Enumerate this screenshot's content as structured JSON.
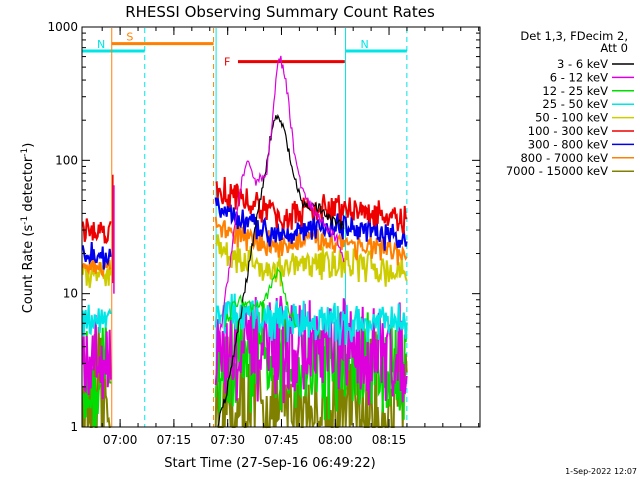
{
  "chart_data": {
    "type": "line",
    "title": "RHESSI Observing Summary Count Rates",
    "xlabel": "Start Time (27-Sep-16 06:49:22)",
    "ylabel": "Count Rate (s-1 detector-1)",
    "ylabel_parts": {
      "pre": "Count Rate (s",
      "sup1": "-1",
      "mid": " detector",
      "sup2": "-1",
      "post": ")"
    },
    "yscale": "log",
    "ylim": [
      1,
      1000
    ],
    "xlim_min": [
      0,
      111
    ],
    "yticks": [
      {
        "value": 1,
        "label": "1"
      },
      {
        "value": 10,
        "label": "10"
      },
      {
        "value": 100,
        "label": "100"
      },
      {
        "value": 1000,
        "label": "1000"
      }
    ],
    "xticks": [
      {
        "value": 10.63,
        "label": "07:00"
      },
      {
        "value": 25.63,
        "label": "07:15"
      },
      {
        "value": 40.63,
        "label": "07:30"
      },
      {
        "value": 55.63,
        "label": "07:45"
      },
      {
        "value": 70.63,
        "label": "08:00"
      },
      {
        "value": 85.63,
        "label": "08:15"
      }
    ],
    "legend_header": [
      "Det 1,3, FDecim 2,",
      "Att 0"
    ],
    "legend_placement": "right",
    "series": [
      {
        "name": "3 - 6 keV",
        "color": "#000000"
      },
      {
        "name": "6 - 12 keV",
        "color": "#dd00dd"
      },
      {
        "name": "12 - 25 keV",
        "color": "#00dd00"
      },
      {
        "name": "25 - 50 keV",
        "color": "#00e5e5"
      },
      {
        "name": "50 - 100 keV",
        "color": "#cccc00"
      },
      {
        "name": "100 - 300 keV",
        "color": "#ee0000"
      },
      {
        "name": "300 - 800 keV",
        "color": "#0000ee"
      },
      {
        "name": "800 - 7000 keV",
        "color": "#ff7f00"
      },
      {
        "name": "7000 - 15000 keV",
        "color": "#808000"
      }
    ],
    "bars": [
      {
        "label": "S",
        "color": "#ff7f00",
        "x0": 8.2,
        "x1": 36.7,
        "value": 750
      },
      {
        "label": "N",
        "color": "#00e5e5",
        "x0": 0,
        "x1": 17.5,
        "value": 660
      },
      {
        "label": "N",
        "color": "#00e5e5",
        "x0": 73.5,
        "x1": 90.6,
        "value": 660
      },
      {
        "label": "F",
        "color": "#ee0000",
        "x0": 43.5,
        "x1": 73.3,
        "value": 550
      }
    ],
    "vlines": [
      {
        "x": 8.3,
        "color": "#ff7f00",
        "dashed": false
      },
      {
        "x": 17.5,
        "color": "#00e5e5",
        "dashed": true
      },
      {
        "x": 36.7,
        "color": "#ff7f00",
        "dashed": true
      },
      {
        "x": 37.4,
        "color": "#00e5e5",
        "dashed": false
      },
      {
        "x": 73.5,
        "color": "#00e5e5",
        "dashed": false
      },
      {
        "x": 90.6,
        "color": "#00e5e5",
        "dashed": true
      }
    ],
    "curves": [
      {
        "series": 0,
        "points": [
          [
            37.9,
            1.0
          ],
          [
            39.5,
            1.5
          ],
          [
            41.0,
            2.2
          ],
          [
            41.9,
            3.0
          ],
          [
            43.4,
            5.0
          ],
          [
            45.7,
            12
          ],
          [
            47.5,
            24
          ],
          [
            49.4,
            45
          ],
          [
            51.0,
            80
          ],
          [
            52.6,
            150
          ],
          [
            54.1,
            210
          ],
          [
            55.5,
            195
          ],
          [
            56.8,
            150
          ],
          [
            58.3,
            95
          ],
          [
            60.0,
            60
          ],
          [
            61.4,
            48
          ],
          [
            63.0,
            45
          ],
          [
            64.4,
            46
          ],
          [
            66.0,
            44
          ],
          [
            67.5,
            40
          ],
          [
            69.0,
            36
          ],
          [
            70.6,
            34
          ],
          [
            72.0,
            33
          ],
          [
            73.3,
            31
          ]
        ]
      },
      {
        "series": 1,
        "points": [
          [
            37.9,
            4.5
          ],
          [
            39.0,
            6
          ],
          [
            40.5,
            12
          ],
          [
            42.0,
            25
          ],
          [
            43.5,
            45
          ],
          [
            44.5,
            70
          ],
          [
            46.0,
            92
          ],
          [
            47.2,
            85
          ],
          [
            48.5,
            70
          ],
          [
            49.5,
            75
          ],
          [
            50.6,
            72
          ],
          [
            51.5,
            82
          ],
          [
            52.6,
            150
          ],
          [
            53.7,
            320
          ],
          [
            54.8,
            600
          ],
          [
            55.5,
            560
          ],
          [
            56.6,
            420
          ],
          [
            57.7,
            260
          ],
          [
            58.7,
            150
          ],
          [
            59.8,
            90
          ],
          [
            60.8,
            70
          ],
          [
            62.0,
            55
          ],
          [
            63.0,
            48
          ],
          [
            64.0,
            44
          ],
          [
            65.5,
            38
          ],
          [
            67.0,
            35
          ],
          [
            68.5,
            30
          ],
          [
            70.0,
            27
          ],
          [
            71.5,
            25
          ],
          [
            73.2,
            18
          ]
        ]
      },
      {
        "series": 2,
        "points": [
          [
            40.0,
            6
          ],
          [
            42.0,
            8
          ],
          [
            44.0,
            9
          ],
          [
            46.0,
            8.5
          ],
          [
            48.0,
            8
          ],
          [
            50.0,
            9
          ],
          [
            52.0,
            10
          ],
          [
            53.5,
            13
          ],
          [
            54.8,
            15
          ],
          [
            55.6,
            13
          ],
          [
            56.5,
            10
          ],
          [
            58.0,
            7
          ],
          [
            60.0,
            6
          ]
        ]
      }
    ],
    "bands": [
      {
        "series": 5,
        "x0": 37.3,
        "x1": 90.6,
        "jitter": 0.09,
        "points": [
          [
            37.3,
            63
          ],
          [
            40.0,
            58
          ],
          [
            45.0,
            52
          ],
          [
            50.0,
            43
          ],
          [
            55.0,
            38
          ],
          [
            60.0,
            39
          ],
          [
            65.0,
            42
          ],
          [
            70.0,
            44
          ],
          [
            75.0,
            42
          ],
          [
            80.0,
            41
          ],
          [
            85.0,
            37
          ],
          [
            90.6,
            35
          ]
        ]
      },
      {
        "series": 6,
        "x0": 37.3,
        "x1": 90.6,
        "jitter": 0.08,
        "points": [
          [
            37.3,
            48
          ],
          [
            40.0,
            40
          ],
          [
            45.0,
            34
          ],
          [
            50.0,
            30
          ],
          [
            55.0,
            29
          ],
          [
            60.0,
            30
          ],
          [
            65.0,
            31
          ],
          [
            70.0,
            32
          ],
          [
            75.0,
            31
          ],
          [
            80.0,
            29
          ],
          [
            85.0,
            27
          ],
          [
            90.6,
            24
          ]
        ]
      },
      {
        "series": 7,
        "x0": 37.3,
        "x1": 90.6,
        "jitter": 0.08,
        "points": [
          [
            37.3,
            35
          ],
          [
            40.0,
            30
          ],
          [
            45.0,
            27
          ],
          [
            50.0,
            24
          ],
          [
            55.0,
            23
          ],
          [
            60.0,
            24
          ],
          [
            65.0,
            25
          ],
          [
            70.0,
            25
          ],
          [
            75.0,
            24
          ],
          [
            80.0,
            22
          ],
          [
            85.0,
            21
          ],
          [
            90.6,
            19
          ]
        ]
      },
      {
        "series": 4,
        "x0": 37.3,
        "x1": 90.6,
        "jitter": 0.1,
        "points": [
          [
            37.3,
            25
          ],
          [
            40.0,
            21
          ],
          [
            45.0,
            18
          ],
          [
            50.0,
            16
          ],
          [
            55.0,
            15
          ],
          [
            60.0,
            16
          ],
          [
            65.0,
            17
          ],
          [
            70.0,
            17
          ],
          [
            75.0,
            17
          ],
          [
            80.0,
            16
          ],
          [
            85.0,
            15
          ],
          [
            90.6,
            14
          ]
        ]
      },
      {
        "series": 5,
        "x0": 0.2,
        "x1": 8.2,
        "jitter": 0.07,
        "points": [
          [
            0.2,
            30
          ],
          [
            4.0,
            29
          ],
          [
            8.2,
            30
          ]
        ]
      },
      {
        "series": 6,
        "x0": 0.2,
        "x1": 8.2,
        "jitter": 0.07,
        "points": [
          [
            0.2,
            20
          ],
          [
            4.0,
            19
          ],
          [
            8.2,
            19
          ]
        ]
      },
      {
        "series": 7,
        "x0": 0.2,
        "x1": 8.2,
        "jitter": 0.07,
        "points": [
          [
            0.2,
            17
          ],
          [
            4.0,
            16
          ],
          [
            8.2,
            16
          ]
        ]
      },
      {
        "series": 4,
        "x0": 0.2,
        "x1": 8.2,
        "jitter": 0.08,
        "points": [
          [
            0.2,
            14
          ],
          [
            4.0,
            13
          ],
          [
            8.2,
            14
          ]
        ]
      },
      {
        "series": 3,
        "x0": 37.3,
        "x1": 90.6,
        "jitter": 0.12,
        "points": [
          [
            37.3,
            7.5
          ],
          [
            50.0,
            6.5
          ],
          [
            70.0,
            6
          ],
          [
            90.6,
            6
          ]
        ]
      },
      {
        "series": 3,
        "x0": 0.2,
        "x1": 8.2,
        "jitter": 0.1,
        "points": [
          [
            0.2,
            6.5
          ],
          [
            8.2,
            6.5
          ]
        ]
      },
      {
        "series": 1,
        "x0": 37.3,
        "x1": 90.6,
        "jitter": 0.3,
        "points": [
          [
            37.3,
            3.5
          ],
          [
            60.0,
            3.8
          ],
          [
            90.6,
            3.5
          ]
        ]
      },
      {
        "series": 1,
        "x0": 0.2,
        "x1": 8.2,
        "jitter": 0.3,
        "points": [
          [
            0.2,
            3.2
          ],
          [
            8.2,
            3.2
          ]
        ]
      },
      {
        "series": 2,
        "x0": 37.3,
        "x1": 90.6,
        "jitter": 0.35,
        "points": [
          [
            37.3,
            2.8
          ],
          [
            60.0,
            3.2
          ],
          [
            90.6,
            2.8
          ]
        ]
      },
      {
        "series": 2,
        "x0": 0.2,
        "x1": 8.2,
        "jitter": 0.3,
        "points": [
          [
            0.2,
            2.5
          ],
          [
            8.2,
            2.5
          ]
        ]
      },
      {
        "series": 8,
        "x0": 37.3,
        "x1": 90.6,
        "jitter": 0.45,
        "points": [
          [
            37.3,
            1.3
          ],
          [
            90.6,
            1.3
          ]
        ]
      },
      {
        "series": 8,
        "x0": 0.2,
        "x1": 8.2,
        "jitter": 0.45,
        "points": [
          [
            0.2,
            1.3
          ],
          [
            8.2,
            1.3
          ]
        ]
      }
    ],
    "spikes": [
      {
        "series": 5,
        "x": 8.6,
        "from": 12,
        "to": 78
      },
      {
        "series": 1,
        "x": 8.9,
        "from": 10,
        "to": 65
      }
    ]
  },
  "footer": {
    "timestamp": "1-Sep-2022 12:07"
  }
}
